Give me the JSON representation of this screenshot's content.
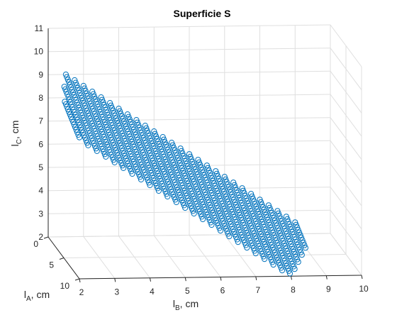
{
  "chart_data": {
    "type": "scatter",
    "title": "Superficie S",
    "xlabel": {
      "base": "l",
      "sub": "B",
      "suffix": ", cm"
    },
    "ylabel": {
      "base": "l",
      "sub": "A",
      "suffix": ", cm"
    },
    "zlabel": {
      "base": "l",
      "sub": "C",
      "suffix": ", cm"
    },
    "xlim": [
      2,
      10
    ],
    "ylim": [
      0,
      10
    ],
    "zlim": [
      2,
      11
    ],
    "xticks": [
      "2",
      "3",
      "4",
      "5",
      "6",
      "7",
      "8",
      "9",
      "10"
    ],
    "yticks": [
      "0",
      "5",
      "10"
    ],
    "zticks": [
      "2",
      "3",
      "4",
      "5",
      "6",
      "7",
      "8",
      "9",
      "10",
      "11"
    ],
    "grid": true,
    "marker": "circle",
    "marker_color": "#0072BD",
    "surface": {
      "description_free": true,
      "lA_range": [
        0,
        10
      ],
      "lA_step": 0.333,
      "lB_range": [
        2,
        9
      ],
      "lB_step": 0.25,
      "constraint_sum": 11.5,
      "lC_max": 9.3
    }
  }
}
